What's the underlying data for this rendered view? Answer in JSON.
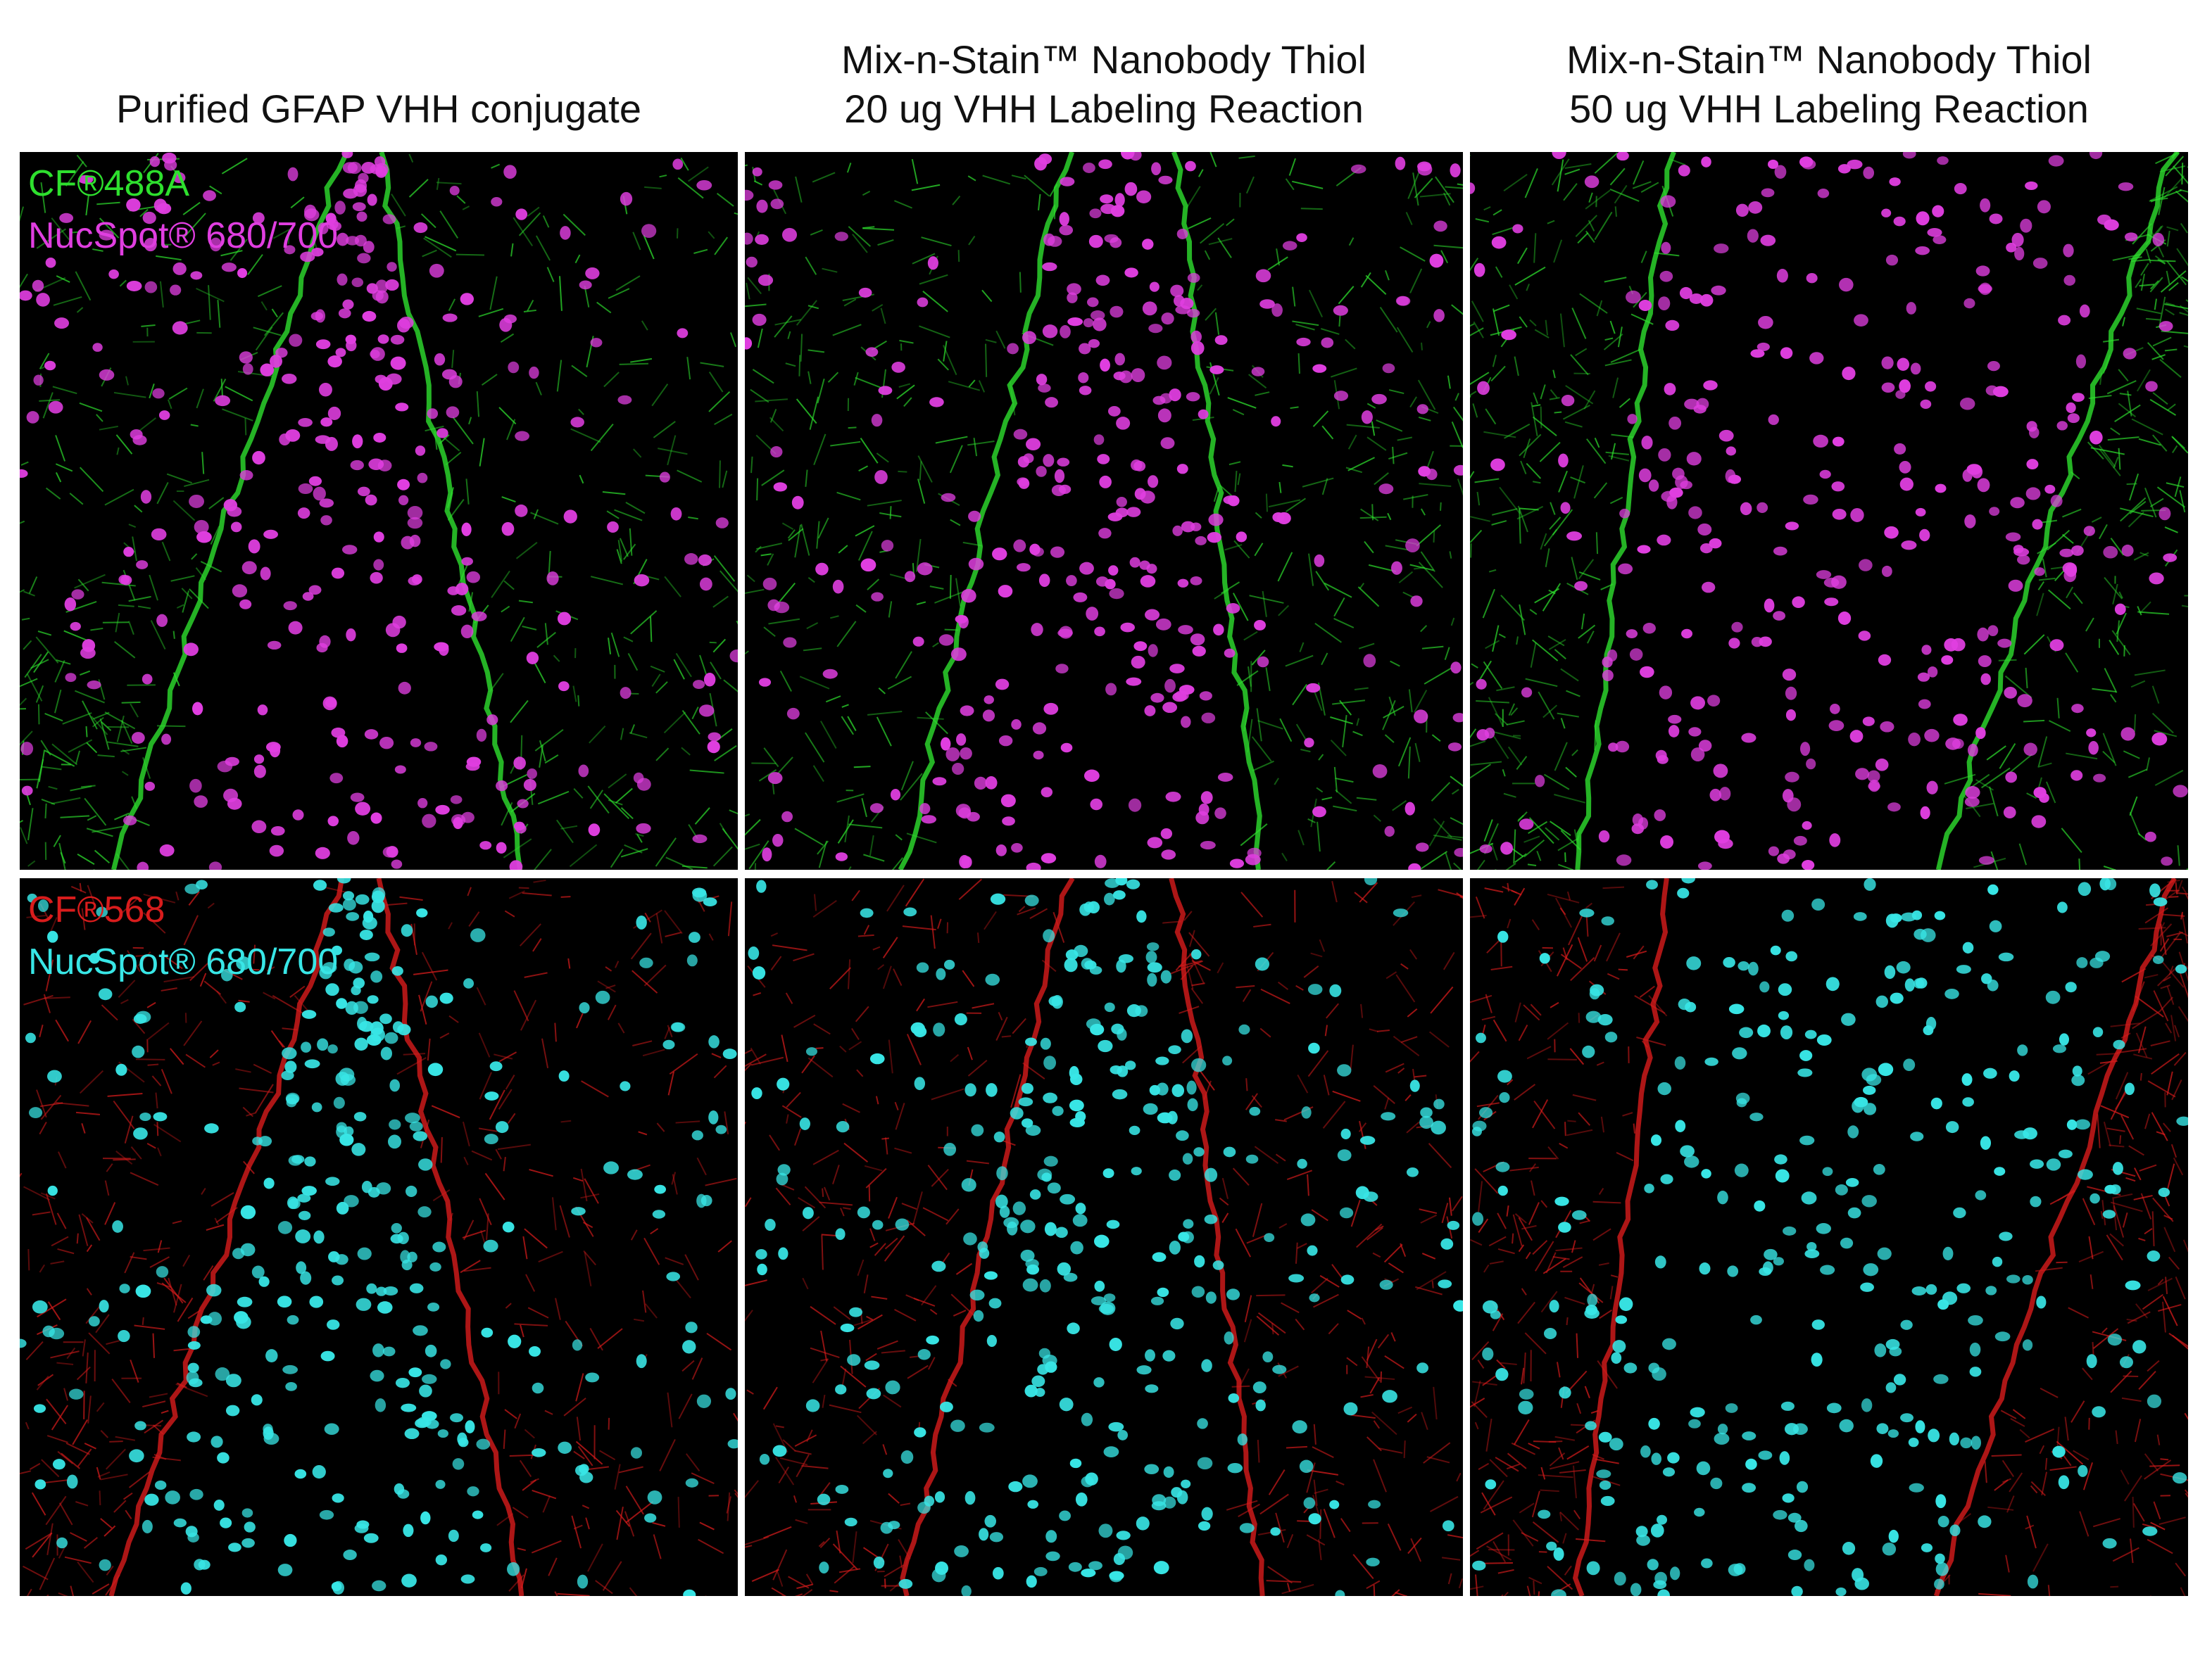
{
  "header": {
    "columns": [
      {
        "lines": [
          "Purified GFAP VHH conjugate"
        ]
      },
      {
        "lines": [
          "Mix-n-Stain™ Nanobody Thiol",
          "20 ug VHH Labeling Reaction"
        ]
      },
      {
        "lines": [
          "Mix-n-Stain™ Nanobody Thiol",
          "50 ug VHH Labeling Reaction"
        ]
      }
    ]
  },
  "panels": {
    "rows": [
      {
        "labels": [
          "CF®488A",
          "NucSpot® 680/700"
        ]
      },
      {
        "labels": [
          "CF®568",
          "NucSpot® 680/700"
        ]
      }
    ]
  }
}
